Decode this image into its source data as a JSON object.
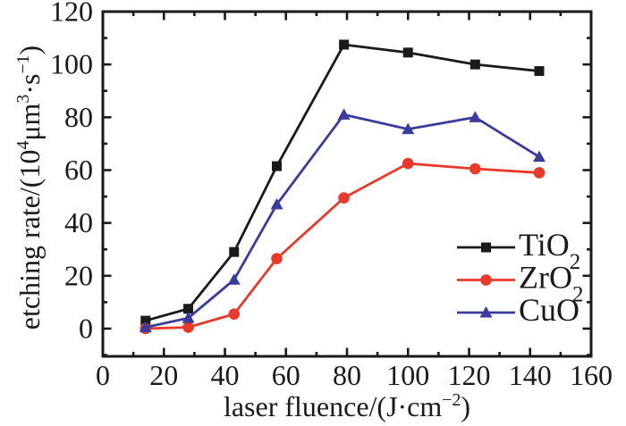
{
  "chart_data": {
    "type": "line",
    "title": "",
    "xlabel": "laser fluence/(J·cm⁻²)",
    "ylabel": "etching rate/(10⁴μm³·s⁻¹)",
    "xlabel_parts": [
      {
        "t": "laser fluence/(J·cm"
      },
      {
        "t": "−2",
        "sup": true
      },
      {
        "t": ")"
      }
    ],
    "ylabel_parts": [
      {
        "t": "etching rate/(10"
      },
      {
        "t": "4",
        "sup": true
      },
      {
        "t": "μm"
      },
      {
        "t": "3",
        "sup": true
      },
      {
        "t": "·s"
      },
      {
        "t": "−1",
        "sup": true
      },
      {
        "t": ")"
      }
    ],
    "xlim": [
      0,
      160
    ],
    "ylim": [
      -10.5,
      120
    ],
    "xticks": [
      0,
      20,
      40,
      60,
      80,
      100,
      120,
      140,
      160
    ],
    "yticks": [
      0,
      20,
      40,
      60,
      80,
      100,
      120
    ],
    "xtick_minor_step": 10,
    "ytick_minor_step": 10,
    "grid": false,
    "legend_position": "inside lower-right",
    "axis_color": "#1a1a1a",
    "background": "#ffffff",
    "x": [
      14,
      28,
      43,
      57,
      79,
      100,
      122,
      143
    ],
    "series": [
      {
        "name": "TiO₂",
        "name_main": "TiO",
        "name_sub": "2",
        "marker": "square",
        "color": "#1a1a1a",
        "values": [
          3,
          7.5,
          29,
          61.5,
          107.5,
          104.5,
          100,
          97.5
        ]
      },
      {
        "name": "ZrO₂",
        "name_main": "ZrO",
        "name_sub": "2",
        "marker": "circle",
        "color": "#e8392b",
        "values": [
          0,
          0.5,
          5.5,
          26.5,
          49.5,
          62.5,
          60.5,
          59
        ]
      },
      {
        "name": "CuO",
        "name_main": "CuO",
        "name_sub": "",
        "marker": "triangle-up",
        "color": "#3a3c9b",
        "values": [
          0.5,
          4,
          18.5,
          47,
          81,
          75.5,
          80,
          65
        ]
      }
    ]
  }
}
